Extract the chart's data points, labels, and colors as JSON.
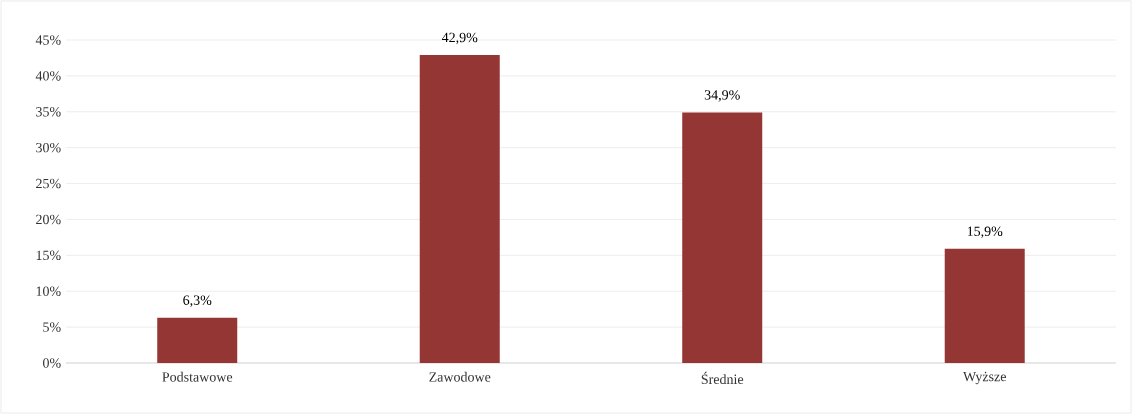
{
  "chart_data": {
    "type": "bar",
    "categories": [
      "Podstawowe",
      "Zawodowe",
      "Średnie",
      "Wyższe"
    ],
    "values": [
      6.3,
      42.9,
      34.9,
      15.9
    ],
    "value_labels": [
      "6,3%",
      "42,9%",
      "34,9%",
      "15,9%"
    ],
    "color": "#943634",
    "ylim": [
      0,
      45
    ],
    "yticks": [
      {
        "value": 0,
        "label": "0%"
      },
      {
        "value": 5,
        "label": "5%"
      },
      {
        "value": 10,
        "label": "10%"
      },
      {
        "value": 15,
        "label": "15%"
      },
      {
        "value": 20,
        "label": "20%"
      },
      {
        "value": 25,
        "label": "25%"
      },
      {
        "value": 30,
        "label": "30%"
      },
      {
        "value": 35,
        "label": "35%"
      },
      {
        "value": 40,
        "label": "40%"
      },
      {
        "value": 45,
        "label": "45%"
      }
    ],
    "grid": "y"
  }
}
